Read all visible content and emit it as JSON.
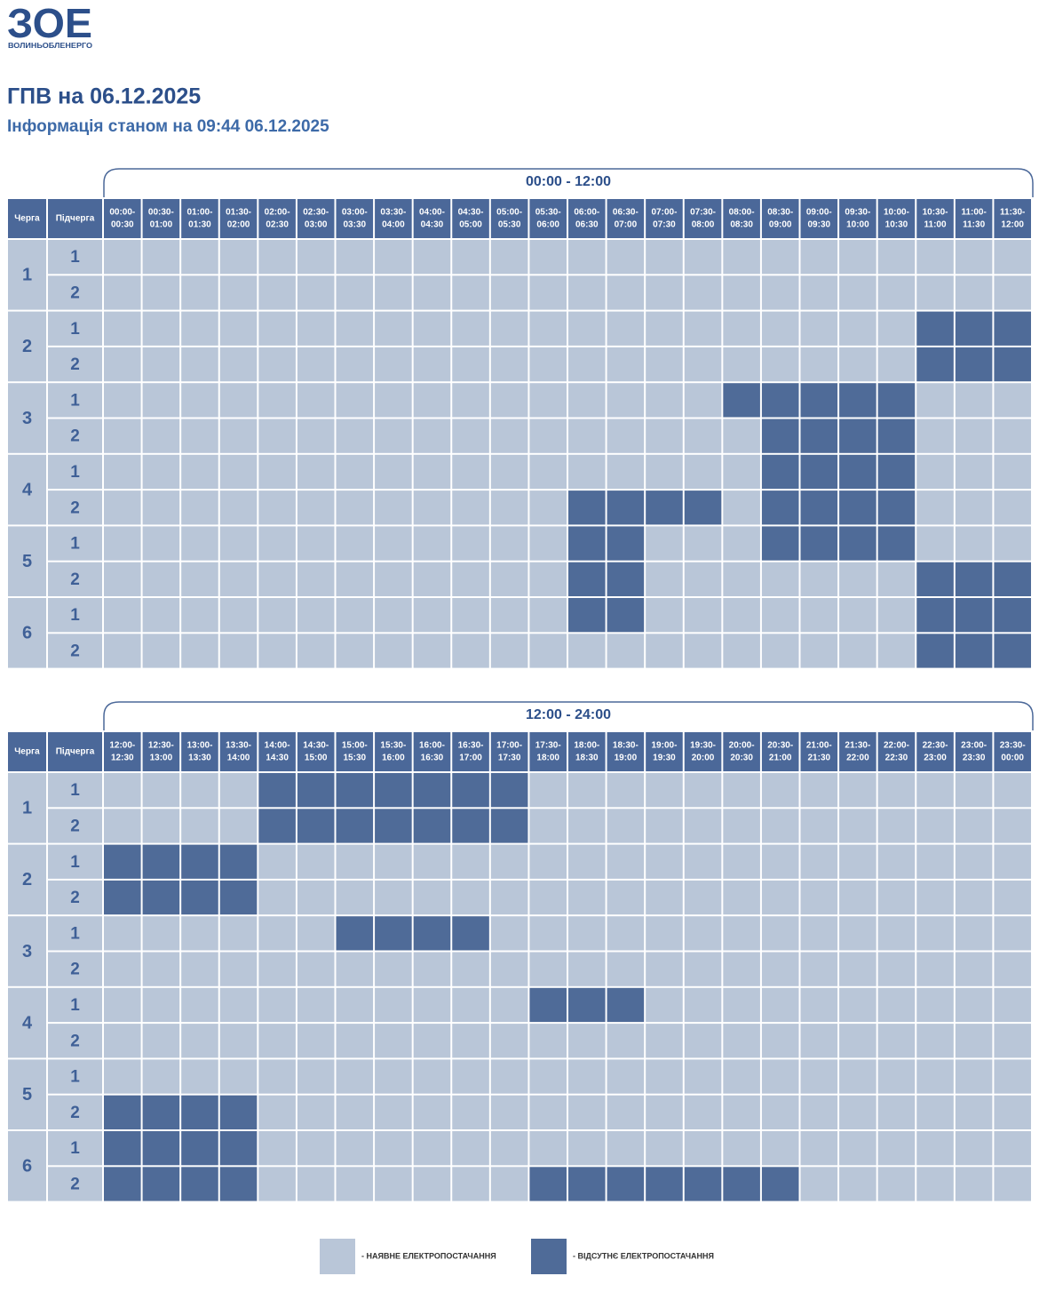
{
  "logo": {
    "mark": "ЗОЕ",
    "name": "ВОЛИНЬОБЛЕНЕРГО"
  },
  "header": {
    "title": "ГПВ на 06.12.2025",
    "subtitle": "Інформація станом на 09:44 06.12.2025"
  },
  "schedules": [
    {
      "period": "00:00 - 12:00",
      "headers": [
        "Черга",
        "Підчерга"
      ],
      "slots": [
        [
          "00:00-",
          "00:30"
        ],
        [
          "00:30-",
          "01:00"
        ],
        [
          "01:00-",
          "01:30"
        ],
        [
          "01:30-",
          "02:00"
        ],
        [
          "02:00-",
          "02:30"
        ],
        [
          "02:30-",
          "03:00"
        ],
        [
          "03:00-",
          "03:30"
        ],
        [
          "03:30-",
          "04:00"
        ],
        [
          "04:00-",
          "04:30"
        ],
        [
          "04:30-",
          "05:00"
        ],
        [
          "05:00-",
          "05:30"
        ],
        [
          "05:30-",
          "06:00"
        ],
        [
          "06:00-",
          "06:30"
        ],
        [
          "06:30-",
          "07:00"
        ],
        [
          "07:00-",
          "07:30"
        ],
        [
          "07:30-",
          "08:00"
        ],
        [
          "08:00-",
          "08:30"
        ],
        [
          "08:30-",
          "09:00"
        ],
        [
          "09:00-",
          "09:30"
        ],
        [
          "09:30-",
          "10:00"
        ],
        [
          "10:00-",
          "10:30"
        ],
        [
          "10:30-",
          "11:00"
        ],
        [
          "11:00-",
          "11:30"
        ],
        [
          "11:30-",
          "12:00"
        ]
      ],
      "groups": [
        {
          "label": "1",
          "subgroups": [
            {
              "label": "1",
              "cells": [
                0,
                0,
                0,
                0,
                0,
                0,
                0,
                0,
                0,
                0,
                0,
                0,
                0,
                0,
                0,
                0,
                0,
                0,
                0,
                0,
                0,
                0,
                0,
                0
              ]
            },
            {
              "label": "2",
              "cells": [
                0,
                0,
                0,
                0,
                0,
                0,
                0,
                0,
                0,
                0,
                0,
                0,
                0,
                0,
                0,
                0,
                0,
                0,
                0,
                0,
                0,
                0,
                0,
                0
              ]
            }
          ]
        },
        {
          "label": "2",
          "subgroups": [
            {
              "label": "1",
              "cells": [
                0,
                0,
                0,
                0,
                0,
                0,
                0,
                0,
                0,
                0,
                0,
                0,
                0,
                0,
                0,
                0,
                0,
                0,
                0,
                0,
                0,
                1,
                1,
                1
              ]
            },
            {
              "label": "2",
              "cells": [
                0,
                0,
                0,
                0,
                0,
                0,
                0,
                0,
                0,
                0,
                0,
                0,
                0,
                0,
                0,
                0,
                0,
                0,
                0,
                0,
                0,
                1,
                1,
                1
              ]
            }
          ]
        },
        {
          "label": "3",
          "subgroups": [
            {
              "label": "1",
              "cells": [
                0,
                0,
                0,
                0,
                0,
                0,
                0,
                0,
                0,
                0,
                0,
                0,
                0,
                0,
                0,
                0,
                1,
                1,
                1,
                1,
                1,
                0,
                0,
                0
              ]
            },
            {
              "label": "2",
              "cells": [
                0,
                0,
                0,
                0,
                0,
                0,
                0,
                0,
                0,
                0,
                0,
                0,
                0,
                0,
                0,
                0,
                0,
                1,
                1,
                1,
                1,
                0,
                0,
                0
              ]
            }
          ]
        },
        {
          "label": "4",
          "subgroups": [
            {
              "label": "1",
              "cells": [
                0,
                0,
                0,
                0,
                0,
                0,
                0,
                0,
                0,
                0,
                0,
                0,
                0,
                0,
                0,
                0,
                0,
                1,
                1,
                1,
                1,
                0,
                0,
                0
              ]
            },
            {
              "label": "2",
              "cells": [
                0,
                0,
                0,
                0,
                0,
                0,
                0,
                0,
                0,
                0,
                0,
                0,
                1,
                1,
                1,
                1,
                0,
                1,
                1,
                1,
                1,
                0,
                0,
                0
              ]
            }
          ]
        },
        {
          "label": "5",
          "subgroups": [
            {
              "label": "1",
              "cells": [
                0,
                0,
                0,
                0,
                0,
                0,
                0,
                0,
                0,
                0,
                0,
                0,
                1,
                1,
                0,
                0,
                0,
                1,
                1,
                1,
                1,
                0,
                0,
                0
              ]
            },
            {
              "label": "2",
              "cells": [
                0,
                0,
                0,
                0,
                0,
                0,
                0,
                0,
                0,
                0,
                0,
                0,
                1,
                1,
                0,
                0,
                0,
                0,
                0,
                0,
                0,
                1,
                1,
                1
              ]
            }
          ]
        },
        {
          "label": "6",
          "subgroups": [
            {
              "label": "1",
              "cells": [
                0,
                0,
                0,
                0,
                0,
                0,
                0,
                0,
                0,
                0,
                0,
                0,
                1,
                1,
                0,
                0,
                0,
                0,
                0,
                0,
                0,
                1,
                1,
                1
              ]
            },
            {
              "label": "2",
              "cells": [
                0,
                0,
                0,
                0,
                0,
                0,
                0,
                0,
                0,
                0,
                0,
                0,
                0,
                0,
                0,
                0,
                0,
                0,
                0,
                0,
                0,
                1,
                1,
                1
              ]
            }
          ]
        }
      ]
    },
    {
      "period": "12:00 - 24:00",
      "headers": [
        "Черга",
        "Підчерга"
      ],
      "slots": [
        [
          "12:00-",
          "12:30"
        ],
        [
          "12:30-",
          "13:00"
        ],
        [
          "13:00-",
          "13:30"
        ],
        [
          "13:30-",
          "14:00"
        ],
        [
          "14:00-",
          "14:30"
        ],
        [
          "14:30-",
          "15:00"
        ],
        [
          "15:00-",
          "15:30"
        ],
        [
          "15:30-",
          "16:00"
        ],
        [
          "16:00-",
          "16:30"
        ],
        [
          "16:30-",
          "17:00"
        ],
        [
          "17:00-",
          "17:30"
        ],
        [
          "17:30-",
          "18:00"
        ],
        [
          "18:00-",
          "18:30"
        ],
        [
          "18:30-",
          "19:00"
        ],
        [
          "19:00-",
          "19:30"
        ],
        [
          "19:30-",
          "20:00"
        ],
        [
          "20:00-",
          "20:30"
        ],
        [
          "20:30-",
          "21:00"
        ],
        [
          "21:00-",
          "21:30"
        ],
        [
          "21:30-",
          "22:00"
        ],
        [
          "22:00-",
          "22:30"
        ],
        [
          "22:30-",
          "23:00"
        ],
        [
          "23:00-",
          "23:30"
        ],
        [
          "23:30-",
          "00:00"
        ]
      ],
      "groups": [
        {
          "label": "1",
          "subgroups": [
            {
              "label": "1",
              "cells": [
                0,
                0,
                0,
                0,
                1,
                1,
                1,
                1,
                1,
                1,
                1,
                0,
                0,
                0,
                0,
                0,
                0,
                0,
                0,
                0,
                0,
                0,
                0,
                0
              ]
            },
            {
              "label": "2",
              "cells": [
                0,
                0,
                0,
                0,
                1,
                1,
                1,
                1,
                1,
                1,
                1,
                0,
                0,
                0,
                0,
                0,
                0,
                0,
                0,
                0,
                0,
                0,
                0,
                0
              ]
            }
          ]
        },
        {
          "label": "2",
          "subgroups": [
            {
              "label": "1",
              "cells": [
                1,
                1,
                1,
                1,
                0,
                0,
                0,
                0,
                0,
                0,
                0,
                0,
                0,
                0,
                0,
                0,
                0,
                0,
                0,
                0,
                0,
                0,
                0,
                0
              ]
            },
            {
              "label": "2",
              "cells": [
                1,
                1,
                1,
                1,
                0,
                0,
                0,
                0,
                0,
                0,
                0,
                0,
                0,
                0,
                0,
                0,
                0,
                0,
                0,
                0,
                0,
                0,
                0,
                0
              ]
            }
          ]
        },
        {
          "label": "3",
          "subgroups": [
            {
              "label": "1",
              "cells": [
                0,
                0,
                0,
                0,
                0,
                0,
                1,
                1,
                1,
                1,
                0,
                0,
                0,
                0,
                0,
                0,
                0,
                0,
                0,
                0,
                0,
                0,
                0,
                0
              ]
            },
            {
              "label": "2",
              "cells": [
                0,
                0,
                0,
                0,
                0,
                0,
                0,
                0,
                0,
                0,
                0,
                0,
                0,
                0,
                0,
                0,
                0,
                0,
                0,
                0,
                0,
                0,
                0,
                0
              ]
            }
          ]
        },
        {
          "label": "4",
          "subgroups": [
            {
              "label": "1",
              "cells": [
                0,
                0,
                0,
                0,
                0,
                0,
                0,
                0,
                0,
                0,
                0,
                1,
                1,
                1,
                0,
                0,
                0,
                0,
                0,
                0,
                0,
                0,
                0,
                0
              ]
            },
            {
              "label": "2",
              "cells": [
                0,
                0,
                0,
                0,
                0,
                0,
                0,
                0,
                0,
                0,
                0,
                0,
                0,
                0,
                0,
                0,
                0,
                0,
                0,
                0,
                0,
                0,
                0,
                0
              ]
            }
          ]
        },
        {
          "label": "5",
          "subgroups": [
            {
              "label": "1",
              "cells": [
                0,
                0,
                0,
                0,
                0,
                0,
                0,
                0,
                0,
                0,
                0,
                0,
                0,
                0,
                0,
                0,
                0,
                0,
                0,
                0,
                0,
                0,
                0,
                0
              ]
            },
            {
              "label": "2",
              "cells": [
                1,
                1,
                1,
                1,
                0,
                0,
                0,
                0,
                0,
                0,
                0,
                0,
                0,
                0,
                0,
                0,
                0,
                0,
                0,
                0,
                0,
                0,
                0,
                0
              ]
            }
          ]
        },
        {
          "label": "6",
          "subgroups": [
            {
              "label": "1",
              "cells": [
                1,
                1,
                1,
                1,
                0,
                0,
                0,
                0,
                0,
                0,
                0,
                0,
                0,
                0,
                0,
                0,
                0,
                0,
                0,
                0,
                0,
                0,
                0,
                0
              ]
            },
            {
              "label": "2",
              "cells": [
                1,
                1,
                1,
                1,
                0,
                0,
                0,
                0,
                0,
                0,
                0,
                1,
                1,
                1,
                1,
                1,
                1,
                1,
                0,
                0,
                0,
                0,
                0,
                0
              ]
            }
          ]
        }
      ]
    }
  ],
  "legend": {
    "available": "- НАЯВНЕ ЕЛЕКТРОПОСТАЧАННЯ",
    "outage": "- ВІДСУТНЄ ЕЛЕКТРОПОСТАЧАННЯ"
  }
}
